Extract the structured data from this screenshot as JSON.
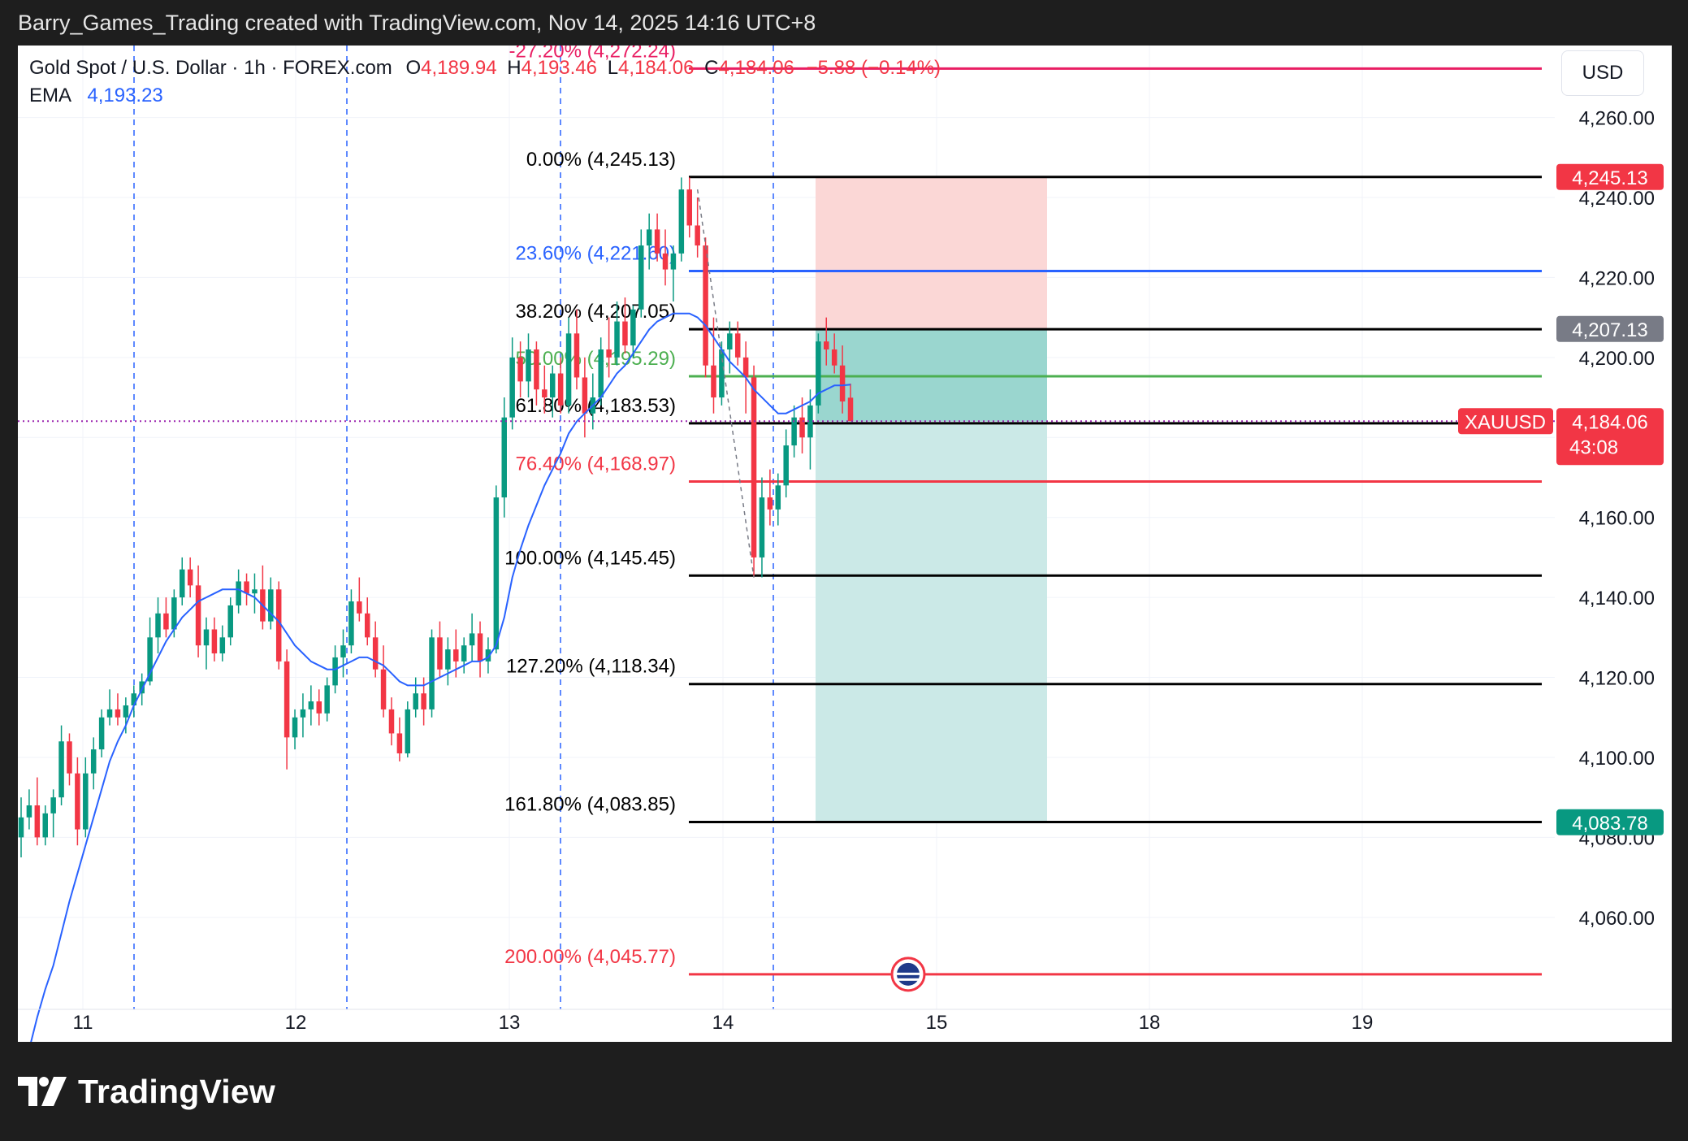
{
  "header": {
    "title": "Barry_Games_Trading created with TradingView.com, Nov 14, 2025 14:16 UTC+8"
  },
  "legend": {
    "symbol_line": "Gold Spot / U.S. Dollar · 1h · FOREX.com",
    "open_label": "O",
    "open_value": "4,189.94",
    "high_label": "H",
    "high_value": "4,193.46",
    "low_label": "L",
    "low_value": "4,184.06",
    "close_label": "C",
    "close_value": "4,184.06",
    "change": "−5.88 (−0.14%)",
    "ema_label": "EMA",
    "ema_value": "4,193.23"
  },
  "currency_button": "USD",
  "footer": {
    "brand": "TradingView"
  },
  "colors": {
    "up": "#089981",
    "down": "#f23645",
    "ema": "#2962ff",
    "fib_black": "#000000",
    "fib_blue": "#2962ff",
    "fib_green": "#4caf50",
    "fib_red": "#f23645",
    "fib_magenta": "#e91e63",
    "stop_zone": "#fbd7d6",
    "target_zone": "#cbe9e7",
    "target_zone_dark": "#9ad6cf"
  },
  "chart_data": {
    "type": "candlestick",
    "symbol": "XAUUSD",
    "interval": "1h",
    "y_axis": {
      "ticks": [
        4060,
        4080,
        4100,
        4120,
        4140,
        4160,
        4180,
        4200,
        4220,
        4240,
        4260
      ],
      "tick_labels": [
        "4,060.00",
        "4,080.00",
        "4,100.00",
        "4,120.00",
        "4,140.00",
        "4,160.00",
        "4,180.00",
        "4,200.00",
        "4,220.00",
        "4,240.00",
        "4,260.00"
      ],
      "range": [
        4037,
        4278
      ]
    },
    "x_axis": {
      "tick_labels": [
        "11",
        "12",
        "13",
        "14",
        "15",
        "18",
        "19"
      ]
    },
    "price_tags": [
      {
        "value": 4245.13,
        "label": "4,245.13",
        "color": "#f23645"
      },
      {
        "value": 4207.13,
        "label": "4,207.13",
        "color": "#787b86"
      },
      {
        "value": 4184.06,
        "label": "4,184.06",
        "sub": "43:08",
        "symbol": "XAUUSD",
        "color": "#f23645"
      },
      {
        "value": 4083.78,
        "label": "4,083.78",
        "color": "#089981"
      }
    ],
    "fib_levels": [
      {
        "label": "-27.20% (4,272.24)",
        "value": 4272.24,
        "color": "#e91e63"
      },
      {
        "label": "0.00% (4,245.13)",
        "value": 4245.13,
        "color": "#000000"
      },
      {
        "label": "23.60% (4,221.60)",
        "value": 4221.6,
        "color": "#2962ff"
      },
      {
        "label": "38.20% (4,207.05)",
        "value": 4207.05,
        "color": "#000000"
      },
      {
        "label": "50.00% (4,195.29)",
        "value": 4195.29,
        "color": "#4caf50"
      },
      {
        "label": "61.80% (4,183.53)",
        "value": 4183.53,
        "color": "#000000"
      },
      {
        "label": "76.40% (4,168.97)",
        "value": 4168.97,
        "color": "#f23645"
      },
      {
        "label": "100.00% (4,145.45)",
        "value": 4145.45,
        "color": "#000000"
      },
      {
        "label": "127.20% (4,118.34)",
        "value": 4118.34,
        "color": "#000000"
      },
      {
        "label": "161.80% (4,083.85)",
        "value": 4083.85,
        "color": "#000000"
      },
      {
        "label": "200.00% (4,045.77)",
        "value": 4045.77,
        "color": "#f23645"
      }
    ],
    "position": {
      "entry": 4207.13,
      "stop": 4245.13,
      "target": 4083.78,
      "current": 4184.06
    },
    "candles": [
      [
        4080,
        4090,
        4075,
        4085
      ],
      [
        4085,
        4092,
        4082,
        4088
      ],
      [
        4088,
        4095,
        4078,
        4080
      ],
      [
        4080,
        4088,
        4078,
        4086
      ],
      [
        4086,
        4092,
        4080,
        4090
      ],
      [
        4090,
        4108,
        4088,
        4104
      ],
      [
        4104,
        4106,
        4093,
        4096
      ],
      [
        4096,
        4100,
        4078,
        4082
      ],
      [
        4082,
        4100,
        4080,
        4096
      ],
      [
        4096,
        4105,
        4092,
        4102
      ],
      [
        4102,
        4112,
        4100,
        4110
      ],
      [
        4110,
        4117,
        4108,
        4112
      ],
      [
        4112,
        4116,
        4108,
        4110
      ],
      [
        4110,
        4115,
        4106,
        4113
      ],
      [
        4113,
        4118,
        4110,
        4116
      ],
      [
        4116,
        4121,
        4113,
        4119
      ],
      [
        4119,
        4135,
        4118,
        4130
      ],
      [
        4130,
        4140,
        4126,
        4136
      ],
      [
        4136,
        4140,
        4130,
        4132
      ],
      [
        4132,
        4142,
        4130,
        4140
      ],
      [
        4140,
        4150,
        4138,
        4147
      ],
      [
        4147,
        4150,
        4140,
        4143
      ],
      [
        4143,
        4148,
        4125,
        4128
      ],
      [
        4128,
        4135,
        4122,
        4132
      ],
      [
        4132,
        4135,
        4124,
        4126
      ],
      [
        4126,
        4133,
        4124,
        4130
      ],
      [
        4130,
        4140,
        4128,
        4138
      ],
      [
        4138,
        4147,
        4136,
        4144
      ],
      [
        4144,
        4146,
        4138,
        4141
      ],
      [
        4141,
        4146,
        4136,
        4142
      ],
      [
        4142,
        4148,
        4132,
        4134
      ],
      [
        4134,
        4145,
        4132,
        4142
      ],
      [
        4142,
        4144,
        4122,
        4124
      ],
      [
        4124,
        4127,
        4097,
        4105
      ],
      [
        4105,
        4112,
        4102,
        4110
      ],
      [
        4110,
        4116,
        4105,
        4112
      ],
      [
        4112,
        4118,
        4108,
        4114
      ],
      [
        4114,
        4117,
        4108,
        4111
      ],
      [
        4111,
        4120,
        4109,
        4118
      ],
      [
        4118,
        4128,
        4116,
        4125
      ],
      [
        4125,
        4132,
        4120,
        4128
      ],
      [
        4128,
        4142,
        4126,
        4139
      ],
      [
        4139,
        4145,
        4134,
        4136
      ],
      [
        4136,
        4140,
        4128,
        4130
      ],
      [
        4130,
        4134,
        4120,
        4122
      ],
      [
        4122,
        4128,
        4110,
        4112
      ],
      [
        4112,
        4115,
        4103,
        4106
      ],
      [
        4106,
        4110,
        4099,
        4101
      ],
      [
        4101,
        4114,
        4100,
        4112
      ],
      [
        4112,
        4120,
        4110,
        4116
      ],
      [
        4116,
        4120,
        4108,
        4112
      ],
      [
        4112,
        4132,
        4110,
        4130
      ],
      [
        4130,
        4134,
        4120,
        4122
      ],
      [
        4122,
        4130,
        4118,
        4127
      ],
      [
        4127,
        4132,
        4120,
        4124
      ],
      [
        4124,
        4130,
        4121,
        4128
      ],
      [
        4128,
        4136,
        4124,
        4131
      ],
      [
        4131,
        4134,
        4120,
        4124
      ],
      [
        4124,
        4130,
        4121,
        4127
      ],
      [
        4127,
        4168,
        4126,
        4165
      ],
      [
        4165,
        4190,
        4160,
        4185
      ],
      [
        4185,
        4205,
        4182,
        4200
      ],
      [
        4200,
        4204,
        4190,
        4194
      ],
      [
        4194,
        4206,
        4190,
        4202
      ],
      [
        4202,
        4204,
        4188,
        4192
      ],
      [
        4192,
        4198,
        4186,
        4190
      ],
      [
        4190,
        4198,
        4185,
        4196
      ],
      [
        4196,
        4200,
        4186,
        4188
      ],
      [
        4188,
        4210,
        4186,
        4206
      ],
      [
        4206,
        4212,
        4192,
        4195
      ],
      [
        4195,
        4200,
        4180,
        4186
      ],
      [
        4186,
        4196,
        4182,
        4190
      ],
      [
        4190,
        4205,
        4188,
        4202
      ],
      [
        4202,
        4210,
        4195,
        4200
      ],
      [
        4200,
        4214,
        4198,
        4209
      ],
      [
        4209,
        4215,
        4201,
        4203
      ],
      [
        4203,
        4213,
        4200,
        4212
      ],
      [
        4212,
        4232,
        4210,
        4228
      ],
      [
        4228,
        4236,
        4222,
        4232
      ],
      [
        4232,
        4236,
        4224,
        4226
      ],
      [
        4226,
        4232,
        4218,
        4222
      ],
      [
        4222,
        4228,
        4214,
        4226
      ],
      [
        4226,
        4245,
        4224,
        4242
      ],
      [
        4242,
        4245,
        4230,
        4233
      ],
      [
        4233,
        4240,
        4225,
        4228
      ],
      [
        4228,
        4230,
        4195,
        4198
      ],
      [
        4198,
        4210,
        4186,
        4190
      ],
      [
        4190,
        4204,
        4188,
        4202
      ],
      [
        4202,
        4209,
        4196,
        4206
      ],
      [
        4206,
        4209,
        4198,
        4200
      ],
      [
        4200,
        4204,
        4186,
        4195
      ],
      [
        4195,
        4198,
        4145,
        4150
      ],
      [
        4150,
        4170,
        4145,
        4165
      ],
      [
        4165,
        4172,
        4158,
        4162
      ],
      [
        4162,
        4171,
        4158,
        4168
      ],
      [
        4168,
        4182,
        4165,
        4178
      ],
      [
        4178,
        4188,
        4175,
        4185
      ],
      [
        4185,
        4190,
        4176,
        4180
      ],
      [
        4180,
        4192,
        4172,
        4188
      ],
      [
        4188,
        4206,
        4186,
        4204
      ],
      [
        4204,
        4210,
        4198,
        4202
      ],
      [
        4202,
        4206,
        4196,
        4198
      ],
      [
        4198,
        4203,
        4186,
        4189
      ],
      [
        4189.94,
        4193.46,
        4184.06,
        4184.06
      ]
    ],
    "ema": [
      4020,
      4027,
      4035,
      4042,
      4048,
      4056,
      4064,
      4071,
      4078,
      4085,
      4092,
      4099,
      4104,
      4108,
      4113,
      4117,
      4121,
      4125,
      4129,
      4132,
      4135,
      4137,
      4139,
      4140,
      4141,
      4142,
      4142,
      4142,
      4141,
      4140,
      4138,
      4136,
      4134,
      4131,
      4128,
      4126,
      4124,
      4123,
      4122,
      4122,
      4123,
      4124,
      4125,
      4125,
      4124,
      4123,
      4121,
      4119,
      4118,
      4118,
      4118,
      4119,
      4120,
      4121,
      4122,
      4123,
      4124,
      4124,
      4125,
      4128,
      4135,
      4145,
      4152,
      4158,
      4163,
      4168,
      4172,
      4176,
      4181,
      4184,
      4186,
      4188,
      4190,
      4193,
      4196,
      4198,
      4201,
      4204,
      4207,
      4209,
      4210,
      4211,
      4211,
      4211,
      4210,
      4208,
      4205,
      4202,
      4199,
      4197,
      4195,
      4192,
      4190,
      4188,
      4186,
      4186,
      4187,
      4188,
      4189,
      4191,
      4192,
      4193,
      4193,
      4193.23
    ]
  }
}
